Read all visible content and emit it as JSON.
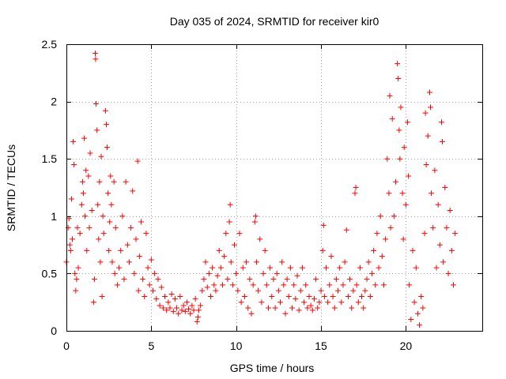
{
  "chart_data": {
    "type": "scatter",
    "title": "Day 035 of 2024, SRMTID for receiver kir0",
    "xlabel": "GPS time / hours",
    "ylabel": "SRMTID / TECUs",
    "xlim": [
      0,
      24.5
    ],
    "ylim": [
      0,
      2.5
    ],
    "xticks": [
      0,
      5,
      10,
      15,
      20
    ],
    "xtick_labels": [
      "0",
      "5",
      "10",
      "15",
      "20"
    ],
    "yticks": [
      0,
      0.5,
      1,
      1.5,
      2,
      2.5
    ],
    "ytick_labels": [
      "0",
      "0.5",
      "1",
      "1.5",
      "2",
      "2.5"
    ],
    "grid": true,
    "marker": "plus",
    "color": "#ff0000",
    "series": [
      {
        "name": "SRMTID",
        "points": [
          [
            0.0,
            0.6
          ],
          [
            0.1,
            0.9
          ],
          [
            0.15,
            0.98
          ],
          [
            0.2,
            0.75
          ],
          [
            0.25,
            0.7
          ],
          [
            0.3,
            1.15
          ],
          [
            0.35,
            0.8
          ],
          [
            0.4,
            1.65
          ],
          [
            0.45,
            1.45
          ],
          [
            0.5,
            0.5
          ],
          [
            0.55,
            0.35
          ],
          [
            0.6,
            0.45
          ],
          [
            0.65,
            0.9
          ],
          [
            0.7,
            0.55
          ],
          [
            0.8,
            0.85
          ],
          [
            0.9,
            1.1
          ],
          [
            0.95,
            1.3
          ],
          [
            1.0,
            1.2
          ],
          [
            1.05,
            1.68
          ],
          [
            1.1,
            1.0
          ],
          [
            1.15,
            1.4
          ],
          [
            1.2,
            0.7
          ],
          [
            1.3,
            1.35
          ],
          [
            1.35,
            0.9
          ],
          [
            1.4,
            1.55
          ],
          [
            1.5,
            1.05
          ],
          [
            1.6,
            0.25
          ],
          [
            1.65,
            0.45
          ],
          [
            1.7,
            2.42
          ],
          [
            1.72,
            2.37
          ],
          [
            1.75,
            1.98
          ],
          [
            1.8,
            1.75
          ],
          [
            1.85,
            1.1
          ],
          [
            1.9,
            0.8
          ],
          [
            1.95,
            1.3
          ],
          [
            2.0,
            0.6
          ],
          [
            2.05,
            1.52
          ],
          [
            2.1,
            0.3
          ],
          [
            2.15,
            1.0
          ],
          [
            2.2,
            0.85
          ],
          [
            2.3,
            1.92
          ],
          [
            2.35,
            1.8
          ],
          [
            2.4,
            1.6
          ],
          [
            2.45,
            1.2
          ],
          [
            2.5,
            0.7
          ],
          [
            2.55,
            0.95
          ],
          [
            2.6,
            1.35
          ],
          [
            2.65,
            1.1
          ],
          [
            2.7,
            0.6
          ],
          [
            2.8,
            1.3
          ],
          [
            2.85,
            0.5
          ],
          [
            2.9,
            0.9
          ],
          [
            3.0,
            0.4
          ],
          [
            3.1,
            0.55
          ],
          [
            3.2,
            0.7
          ],
          [
            3.3,
            1.0
          ],
          [
            3.4,
            0.45
          ],
          [
            3.5,
            1.3
          ],
          [
            3.6,
            0.75
          ],
          [
            3.7,
            0.6
          ],
          [
            3.8,
            0.9
          ],
          [
            3.9,
            1.22
          ],
          [
            4.0,
            0.5
          ],
          [
            4.1,
            0.8
          ],
          [
            4.2,
            1.48
          ],
          [
            4.25,
            0.35
          ],
          [
            4.3,
            0.65
          ],
          [
            4.4,
            0.95
          ],
          [
            4.5,
            0.45
          ],
          [
            4.6,
            0.3
          ],
          [
            4.7,
            0.85
          ],
          [
            4.8,
            0.55
          ],
          [
            4.9,
            0.4
          ],
          [
            5.0,
            0.62
          ],
          [
            5.1,
            0.35
          ],
          [
            5.2,
            0.5
          ],
          [
            5.3,
            0.28
          ],
          [
            5.4,
            0.45
          ],
          [
            5.5,
            0.22
          ],
          [
            5.6,
            0.38
          ],
          [
            5.7,
            0.2
          ],
          [
            5.8,
            0.3
          ],
          [
            5.9,
            0.18
          ],
          [
            6.0,
            0.25
          ],
          [
            6.1,
            0.2
          ],
          [
            6.2,
            0.32
          ],
          [
            6.3,
            0.17
          ],
          [
            6.4,
            0.28
          ],
          [
            6.5,
            0.2
          ],
          [
            6.6,
            0.15
          ],
          [
            6.7,
            0.3
          ],
          [
            6.8,
            0.18
          ],
          [
            6.9,
            0.22
          ],
          [
            7.0,
            0.17
          ],
          [
            7.1,
            0.25
          ],
          [
            7.2,
            0.19
          ],
          [
            7.3,
            0.15
          ],
          [
            7.4,
            0.22
          ],
          [
            7.5,
            0.18
          ],
          [
            7.6,
            0.28
          ],
          [
            7.7,
            0.08
          ],
          [
            7.75,
            0.12
          ],
          [
            7.8,
            0.18
          ],
          [
            7.9,
            0.22
          ],
          [
            8.0,
            0.35
          ],
          [
            8.1,
            0.45
          ],
          [
            8.2,
            0.6
          ],
          [
            8.3,
            0.38
          ],
          [
            8.4,
            0.5
          ],
          [
            8.5,
            0.3
          ],
          [
            8.6,
            0.55
          ],
          [
            8.7,
            0.4
          ],
          [
            8.8,
            0.35
          ],
          [
            8.9,
            0.48
          ],
          [
            9.0,
            0.7
          ],
          [
            9.1,
            0.55
          ],
          [
            9.2,
            0.4
          ],
          [
            9.3,
            0.65
          ],
          [
            9.4,
            0.85
          ],
          [
            9.5,
            0.45
          ],
          [
            9.6,
            0.95
          ],
          [
            9.65,
            1.1
          ],
          [
            9.7,
            0.6
          ],
          [
            9.8,
            0.4
          ],
          [
            9.9,
            0.75
          ],
          [
            10.0,
            0.5
          ],
          [
            10.1,
            0.35
          ],
          [
            10.2,
            0.85
          ],
          [
            10.3,
            0.25
          ],
          [
            10.4,
            0.55
          ],
          [
            10.5,
            0.3
          ],
          [
            10.6,
            0.6
          ],
          [
            10.7,
            0.2
          ],
          [
            10.8,
            0.45
          ],
          [
            10.9,
            0.15
          ],
          [
            11.0,
            0.4
          ],
          [
            11.1,
            0.95
          ],
          [
            11.15,
            1.0
          ],
          [
            11.2,
            0.6
          ],
          [
            11.3,
            0.35
          ],
          [
            11.4,
            0.8
          ],
          [
            11.5,
            0.25
          ],
          [
            11.6,
            0.5
          ],
          [
            11.7,
            0.7
          ],
          [
            11.8,
            0.4
          ],
          [
            11.9,
            0.2
          ],
          [
            12.0,
            0.55
          ],
          [
            12.1,
            0.3
          ],
          [
            12.2,
            0.45
          ],
          [
            12.3,
            0.2
          ],
          [
            12.4,
            0.5
          ],
          [
            12.5,
            0.35
          ],
          [
            12.6,
            0.25
          ],
          [
            12.7,
            0.6
          ],
          [
            12.8,
            0.4
          ],
          [
            12.9,
            0.15
          ],
          [
            13.0,
            0.45
          ],
          [
            13.1,
            0.3
          ],
          [
            13.2,
            0.55
          ],
          [
            13.3,
            0.2
          ],
          [
            13.4,
            0.4
          ],
          [
            13.5,
            0.28
          ],
          [
            13.6,
            0.48
          ],
          [
            13.7,
            0.18
          ],
          [
            13.8,
            0.35
          ],
          [
            13.9,
            0.55
          ],
          [
            14.0,
            0.25
          ],
          [
            14.1,
            0.4
          ],
          [
            14.2,
            0.2
          ],
          [
            14.3,
            0.3
          ],
          [
            14.4,
            0.22
          ],
          [
            14.5,
            0.18
          ],
          [
            14.6,
            0.28
          ],
          [
            14.7,
            0.45
          ],
          [
            14.8,
            0.2
          ],
          [
            14.9,
            0.25
          ],
          [
            15.0,
            0.35
          ],
          [
            15.1,
            0.7
          ],
          [
            15.15,
            0.92
          ],
          [
            15.2,
            0.3
          ],
          [
            15.3,
            0.55
          ],
          [
            15.4,
            0.25
          ],
          [
            15.5,
            0.4
          ],
          [
            15.6,
            0.65
          ],
          [
            15.7,
            0.3
          ],
          [
            15.8,
            0.2
          ],
          [
            15.9,
            0.45
          ],
          [
            16.0,
            0.35
          ],
          [
            16.1,
            0.55
          ],
          [
            16.2,
            0.25
          ],
          [
            16.3,
            0.4
          ],
          [
            16.4,
            0.6
          ],
          [
            16.5,
            0.88
          ],
          [
            16.6,
            0.3
          ],
          [
            16.7,
            0.45
          ],
          [
            16.8,
            0.2
          ],
          [
            16.9,
            0.35
          ],
          [
            17.0,
            1.2
          ],
          [
            17.05,
            1.25
          ],
          [
            17.1,
            0.4
          ],
          [
            17.2,
            0.25
          ],
          [
            17.3,
            0.55
          ],
          [
            17.4,
            0.3
          ],
          [
            17.5,
            0.2
          ],
          [
            17.6,
            0.35
          ],
          [
            17.7,
            0.45
          ],
          [
            17.8,
            0.6
          ],
          [
            17.9,
            0.3
          ],
          [
            18.0,
            0.5
          ],
          [
            18.1,
            0.7
          ],
          [
            18.2,
            0.4
          ],
          [
            18.3,
            0.85
          ],
          [
            18.4,
            0.55
          ],
          [
            18.5,
            1.0
          ],
          [
            18.6,
            0.65
          ],
          [
            18.7,
            0.4
          ],
          [
            18.8,
            0.8
          ],
          [
            18.9,
            1.5
          ],
          [
            19.0,
            1.2
          ],
          [
            19.05,
            2.05
          ],
          [
            19.1,
            0.9
          ],
          [
            19.2,
            1.85
          ],
          [
            19.3,
            1.0
          ],
          [
            19.4,
            1.3
          ],
          [
            19.5,
            2.33
          ],
          [
            19.55,
            2.2
          ],
          [
            19.6,
            1.75
          ],
          [
            19.65,
            1.5
          ],
          [
            19.7,
            1.95
          ],
          [
            19.8,
            1.2
          ],
          [
            19.85,
            0.8
          ],
          [
            19.9,
            1.6
          ],
          [
            20.0,
            1.1
          ],
          [
            20.1,
            1.82
          ],
          [
            20.15,
            1.35
          ],
          [
            20.2,
            0.4
          ],
          [
            20.3,
            0.1
          ],
          [
            20.4,
            0.7
          ],
          [
            20.5,
            0.25
          ],
          [
            20.6,
            0.55
          ],
          [
            20.7,
            0.15
          ],
          [
            20.8,
            0.05
          ],
          [
            20.9,
            0.3
          ],
          [
            21.0,
            0.2
          ],
          [
            21.1,
            0.85
          ],
          [
            21.15,
            1.9
          ],
          [
            21.2,
            1.45
          ],
          [
            21.3,
            1.7
          ],
          [
            21.4,
            2.08
          ],
          [
            21.45,
            1.95
          ],
          [
            21.5,
            1.2
          ],
          [
            21.6,
            0.9
          ],
          [
            21.7,
            1.4
          ],
          [
            21.8,
            0.55
          ],
          [
            21.9,
            1.1
          ],
          [
            22.0,
            0.75
          ],
          [
            22.1,
            1.82
          ],
          [
            22.15,
            1.65
          ],
          [
            22.2,
            0.6
          ],
          [
            22.3,
            1.25
          ],
          [
            22.4,
            0.9
          ],
          [
            22.5,
            0.5
          ],
          [
            22.6,
            1.05
          ],
          [
            22.7,
            0.7
          ],
          [
            22.8,
            0.4
          ],
          [
            22.9,
            0.85
          ]
        ]
      }
    ]
  }
}
